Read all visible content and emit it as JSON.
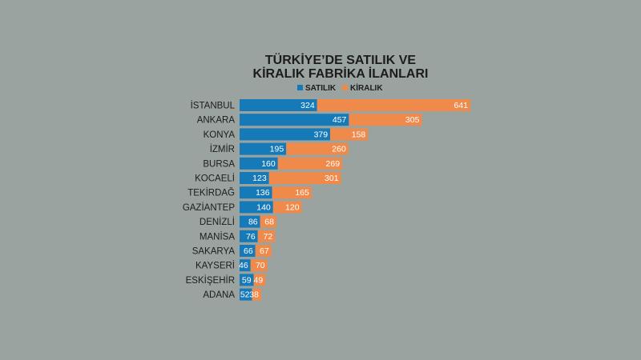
{
  "chart_data": {
    "type": "bar",
    "orientation": "horizontal",
    "stacked": true,
    "title_lines": [
      "TÜRKİYE’DE SATILIK VE",
      "KİRALIK FABRİKA İLANLARI"
    ],
    "legend_position": "top",
    "categories": [
      "İSTANBUL",
      "ANKARA",
      "KONYA",
      "İZMİR",
      "BURSA",
      "KOCAELİ",
      "TEKİRDAĞ",
      "GAZİANTEP",
      "DENİZLİ",
      "MANİSA",
      "SAKARYA",
      "KAYSERİ",
      "ESKİŞEHİR",
      "ADANA"
    ],
    "series": [
      {
        "name": "SATILIK",
        "color": "#1679b8",
        "values": [
          324,
          457,
          379,
          195,
          160,
          123,
          136,
          140,
          86,
          76,
          66,
          46,
          59,
          52
        ]
      },
      {
        "name": "KİRALIK",
        "color": "#f08a4b",
        "values": [
          641,
          305,
          158,
          260,
          269,
          301,
          165,
          120,
          68,
          72,
          67,
          70,
          49,
          38
        ]
      }
    ]
  }
}
